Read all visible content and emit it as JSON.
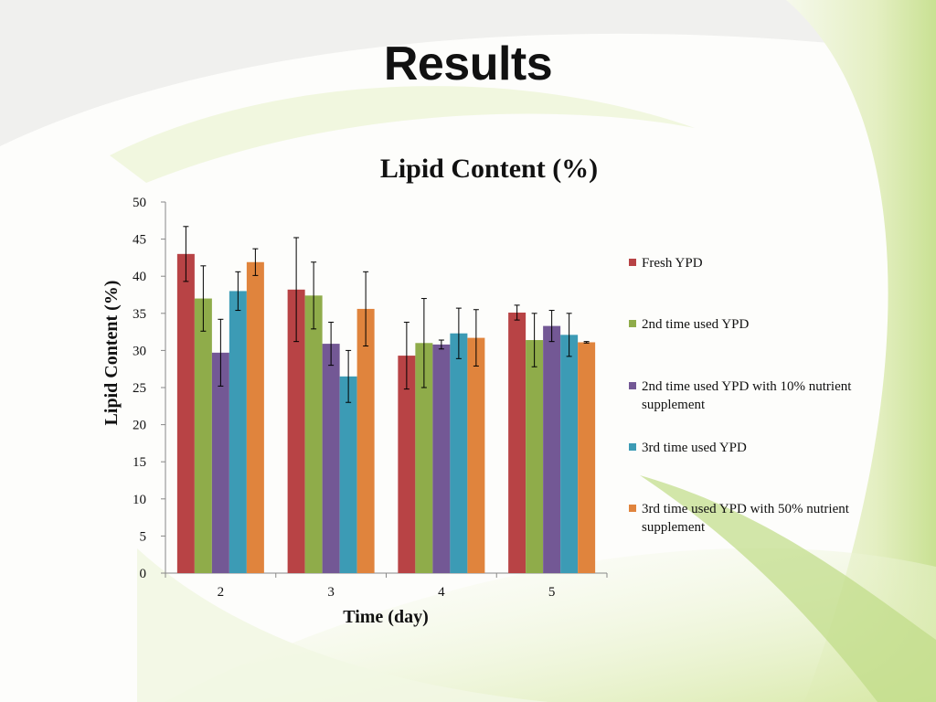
{
  "slide": {
    "title": "Results"
  },
  "colors": {
    "background_swoosh_light": "#e9f3c9",
    "background_swoosh_dark": "#b6d67a",
    "axis": "#888888",
    "text": "#111111"
  },
  "chart_data": {
    "type": "bar",
    "title": "Lipid Content (%)",
    "xlabel": "Time (day)",
    "ylabel": "Lipid Content (%)",
    "ylim": [
      0,
      50
    ],
    "yticks": [
      0,
      5,
      10,
      15,
      20,
      25,
      30,
      35,
      40,
      45,
      50
    ],
    "categories": [
      "2",
      "3",
      "4",
      "5"
    ],
    "legend_position": "right",
    "error_bars": true,
    "series": [
      {
        "name": "Fresh YPD",
        "color": "#b84345",
        "values": [
          43.0,
          38.2,
          29.3,
          35.1
        ],
        "errors": [
          3.7,
          7.0,
          4.5,
          1.0
        ]
      },
      {
        "name": "2nd time used YPD",
        "color": "#8fac4a",
        "values": [
          37.0,
          37.4,
          31.0,
          31.4
        ],
        "errors": [
          4.4,
          4.5,
          6.0,
          3.6
        ]
      },
      {
        "name": "2nd time used YPD with 10% nutrient supplement",
        "color": "#735895",
        "values": [
          29.7,
          30.9,
          30.8,
          33.3
        ],
        "errors": [
          4.5,
          2.9,
          0.6,
          2.1
        ]
      },
      {
        "name": "3rd time used YPD",
        "color": "#3c9bb5",
        "values": [
          38.0,
          26.5,
          32.3,
          32.1
        ],
        "errors": [
          2.6,
          3.5,
          3.4,
          2.9
        ]
      },
      {
        "name": "3rd time used YPD with 50% nutrient supplement",
        "color": "#e0843d",
        "values": [
          41.9,
          35.6,
          31.7,
          31.1
        ],
        "errors": [
          1.8,
          5.0,
          3.8,
          0.1
        ]
      }
    ]
  }
}
